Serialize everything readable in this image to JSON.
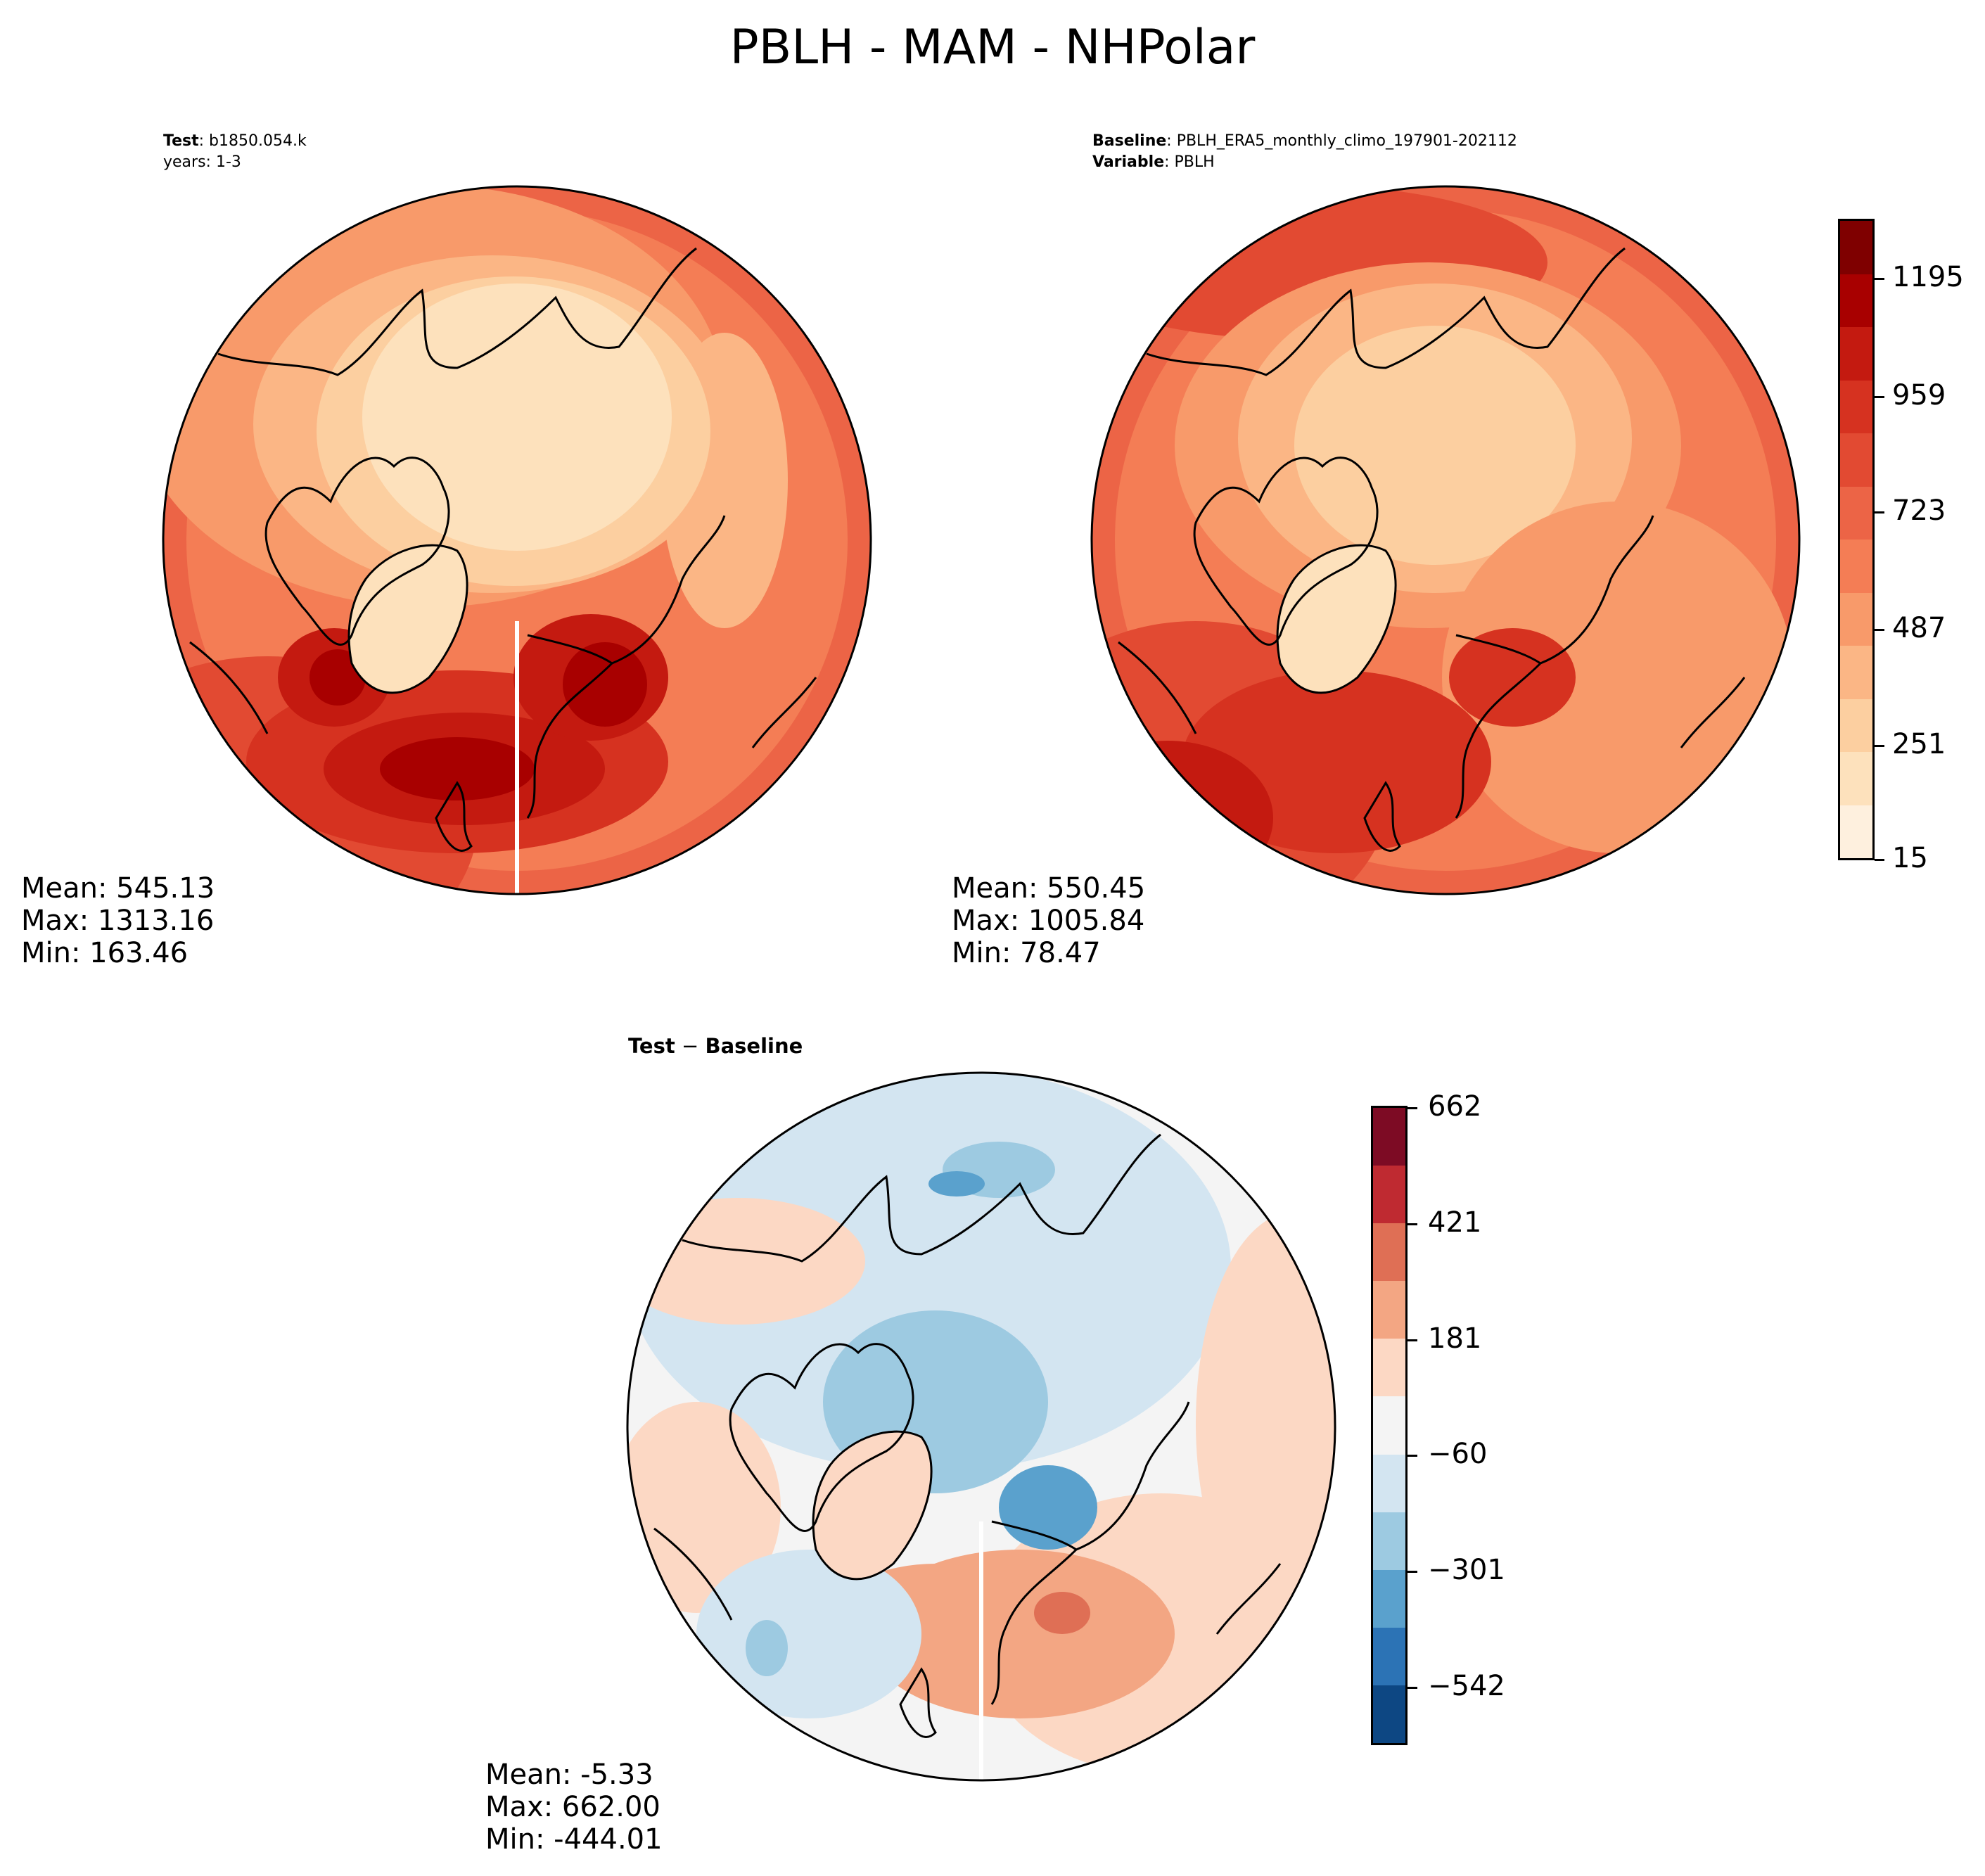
{
  "figure": {
    "title": "PBLH - MAM - NHPolar"
  },
  "panels": {
    "test": {
      "header_label1": "Test",
      "header_value1": ": b1850.054.k",
      "header_line2": "years: 1-3",
      "mean": "Mean: 545.13",
      "max": "Max: 1313.16",
      "min": "Min: 163.46"
    },
    "baseline": {
      "header_label1": "Baseline",
      "header_value1": ": PBLH_ERA5_monthly_climo_197901-202112",
      "header_label2": "Variable",
      "header_value2": ": PBLH",
      "mean": "Mean: 550.45",
      "max": "Max: 1005.84",
      "min": "Min: 78.47"
    },
    "diff": {
      "title_part1": "Test",
      "title_part2": " − ",
      "title_part3": "Baseline",
      "mean": "Mean: -5.33",
      "max": "Max: 662.00",
      "min": "Min: -444.01"
    }
  },
  "colorbars": {
    "absolute": {
      "colormap": "Reds",
      "ticks": [
        "1195",
        "959",
        "723",
        "487",
        "251",
        "15"
      ],
      "colors": [
        "#7f0000",
        "#a80000",
        "#c41a10",
        "#d63220",
        "#e24a32",
        "#ec6446",
        "#f47d55",
        "#f89a6a",
        "#fbb685",
        "#fccfa0",
        "#fde1bc",
        "#fef0de"
      ]
    },
    "difference": {
      "colormap": "RdBu_r",
      "ticks": [
        "662",
        "421",
        "181",
        "−60",
        "−301",
        "−542"
      ],
      "colors": [
        "#7d0b24",
        "#bf2a31",
        "#df6f55",
        "#f3a683",
        "#fcd8c4",
        "#f4f4f4",
        "#d3e5f1",
        "#9dcae1",
        "#5aa1cd",
        "#2c73b5",
        "#0d4783"
      ]
    }
  }
}
